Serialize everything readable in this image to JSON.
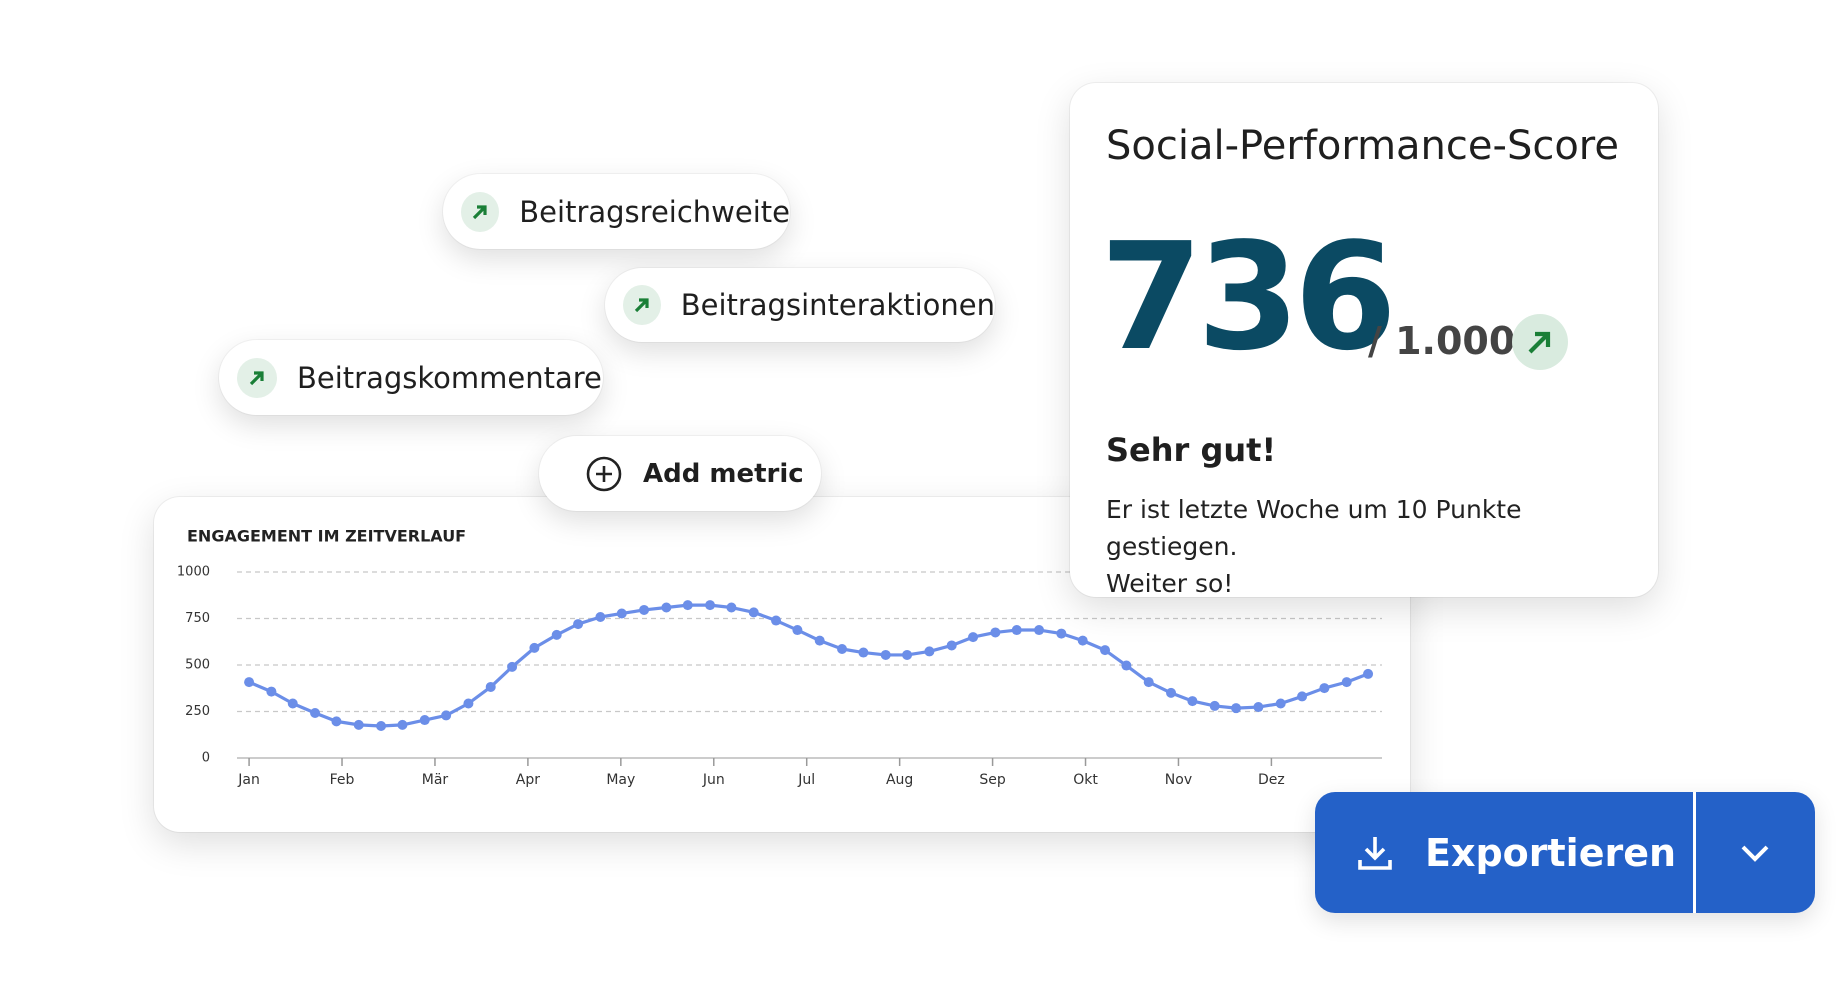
{
  "metrics": [
    "Beitragsreichweite",
    "Beitragsinteraktionen",
    "Beitragskommentare"
  ],
  "add_metric": "Add metric",
  "score": {
    "title": "Social-Performance-Score",
    "value": "736",
    "max": "/ 1.000",
    "rating": "Sehr gut!",
    "message": [
      "Er ist letzte Woche um 10 Punkte gestiegen.",
      "Weiter so!"
    ]
  },
  "export": "Exportieren",
  "chart_data": {
    "type": "line",
    "title": "ENGAGEMENT IM ZEITVERLAUF",
    "color": "#6b8ee8",
    "grid": true,
    "x": [
      0,
      0.24,
      0.47,
      0.71,
      0.94,
      1.18,
      1.42,
      1.65,
      1.89,
      2.12,
      2.36,
      2.6,
      2.83,
      3.07,
      3.31,
      3.54,
      3.78,
      4.01,
      4.25,
      4.49,
      4.72,
      4.96,
      5.19,
      5.43,
      5.67,
      5.9,
      6.14,
      6.38,
      6.61,
      6.85,
      7.08,
      7.32,
      7.56,
      7.79,
      8.03,
      8.26,
      8.5,
      8.74,
      8.97,
      9.21,
      9.44,
      9.68,
      9.92,
      10.15,
      10.39,
      10.62,
      10.86,
      11.1,
      11.33,
      11.57,
      11.81,
      12.04
    ],
    "values": [
      408,
      357,
      293,
      242,
      197,
      178,
      172,
      178,
      204,
      229,
      293,
      382,
      490,
      592,
      662,
      720,
      758,
      777,
      796,
      809,
      822,
      822,
      809,
      783,
      739,
      688,
      631,
      586,
      567,
      554,
      554,
      573,
      605,
      650,
      675,
      688,
      688,
      669,
      631,
      580,
      497,
      408,
      350,
      306,
      280,
      268,
      274,
      293,
      331,
      376,
      408,
      452
    ],
    "xlim": [
      -0.13,
      12.19
    ],
    "xticks": [
      {
        "value": 0,
        "label": "Jan"
      },
      {
        "value": 1,
        "label": "Feb"
      },
      {
        "value": 2,
        "label": "Mär"
      },
      {
        "value": 3,
        "label": "Apr"
      },
      {
        "value": 4,
        "label": "May"
      },
      {
        "value": 5,
        "label": "Jun"
      },
      {
        "value": 6,
        "label": "Jul"
      },
      {
        "value": 7,
        "label": "Aug"
      },
      {
        "value": 8,
        "label": "Sep"
      },
      {
        "value": 9,
        "label": "Okt"
      },
      {
        "value": 10,
        "label": "Nov"
      },
      {
        "value": 11,
        "label": "Dez"
      }
    ],
    "ylim": [
      0,
      1000
    ],
    "yticks": [
      0,
      250,
      500,
      750,
      1000
    ]
  }
}
